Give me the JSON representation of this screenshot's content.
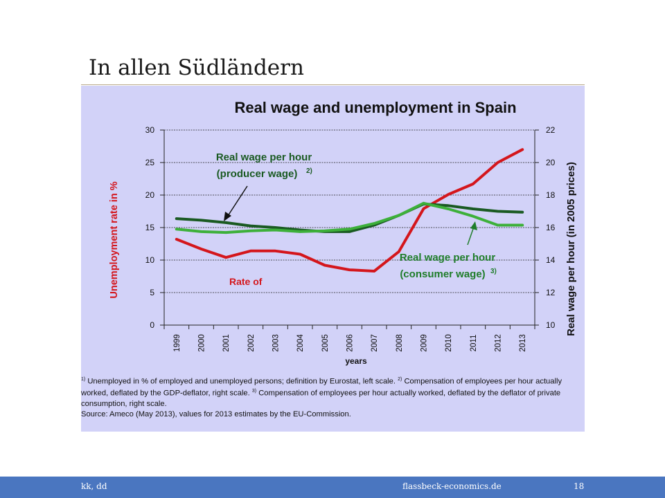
{
  "slide": {
    "title": "In allen Südländern",
    "footer_left": "kk, dd",
    "footer_center": "flassbeck-economics.de",
    "page_number": "18"
  },
  "colors": {
    "panel": "#d2d2f8",
    "unemployment": "#d4161c",
    "producer_wage": "#1a5a22",
    "consumer_wage": "#3db03a",
    "annotation_green": "#1f7d2a",
    "footer": "#4a76c0"
  },
  "chart_data": {
    "type": "line",
    "title": "Real wage and unemployment in Spain",
    "xlabel": "years",
    "ylabel_left": "Unemployment rate in %",
    "ylabel_right": "Real wage per hour (in 2005 prices)",
    "x": [
      "1999",
      "2000",
      "2001",
      "2002",
      "2003",
      "2004",
      "2005",
      "2006",
      "2007",
      "2008",
      "2009",
      "2010",
      "2011",
      "2012",
      "2013"
    ],
    "ylim_left": [
      0,
      30
    ],
    "yticks_left": [
      "0",
      "5",
      "10",
      "15",
      "20",
      "25",
      "30"
    ],
    "ylim_right": [
      10,
      22
    ],
    "yticks_right": [
      "10",
      "12",
      "14",
      "16",
      "18",
      "20",
      "22"
    ],
    "grid": true,
    "series": [
      {
        "key": "unemployment",
        "axis": "left",
        "color": "#d4161c",
        "values": [
          13.2,
          11.7,
          10.4,
          11.4,
          11.4,
          10.9,
          9.2,
          8.5,
          8.3,
          11.3,
          17.9,
          20.1,
          21.7,
          25.0,
          27.0
        ]
      },
      {
        "key": "producer_wage",
        "axis": "right",
        "color": "#1a5a22",
        "values": [
          16.55,
          16.45,
          16.3,
          16.1,
          16.0,
          15.85,
          15.75,
          15.75,
          16.15,
          16.75,
          17.45,
          17.35,
          17.15,
          17.0,
          16.95
        ]
      },
      {
        "key": "consumer_wage",
        "axis": "right",
        "color": "#3db03a",
        "values": [
          15.9,
          15.75,
          15.7,
          15.8,
          15.85,
          15.75,
          15.8,
          15.9,
          16.25,
          16.75,
          17.5,
          17.15,
          16.7,
          16.15,
          16.15
        ]
      }
    ],
    "annotations": {
      "producer_line1": "Real wage per hour",
      "producer_line2": "(producer wage)",
      "producer_sup": "2)",
      "consumer_line1": "Real wage per hour",
      "consumer_line2": "(consumer wage)",
      "consumer_sup": "3)",
      "unemployment": "Rate of"
    },
    "footnotes": {
      "f1_mark": "1)",
      "f1_text": " Unemployed in % of employed and unemployed persons; definition by Eurostat, left scale. ",
      "f2_mark": "2)",
      "f2_text": " Compensation of employees per hour actually worked, deflated by the GDP-deflator, right scale. ",
      "f3_mark": "3)",
      "f3_text": " Compensation of employees per hour actually worked, deflated by the deflator of private consumption, right scale.",
      "source": "Source: Ameco (May 2013), values for 2013 estimates by the EU-Commission."
    }
  }
}
